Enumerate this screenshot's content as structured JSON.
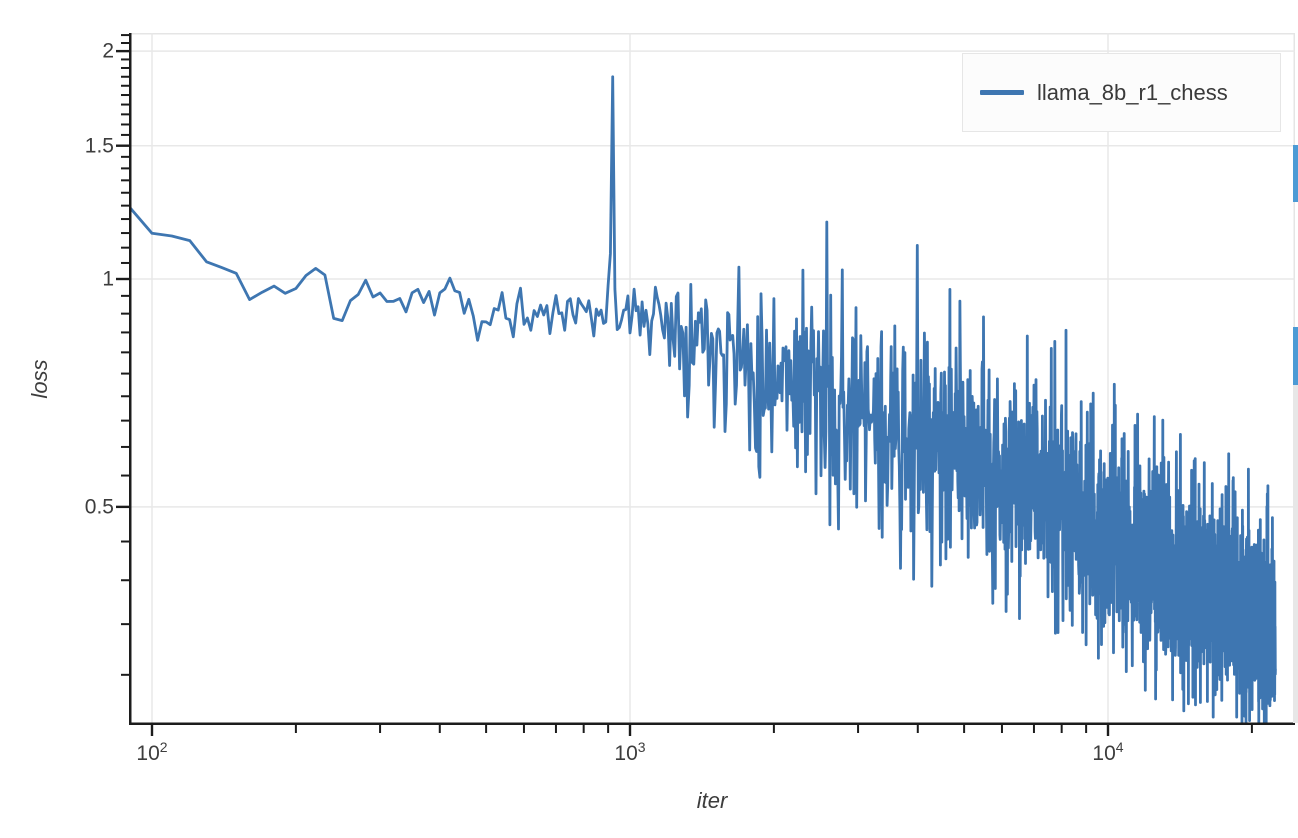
{
  "page": {
    "background": "#FFFFFF",
    "right_edge": {
      "strip_color": "#E7E7E7",
      "fragment_color": "#4C9BD5"
    }
  },
  "chart_data": {
    "type": "line",
    "title": "",
    "xlabel": "iter",
    "ylabel": "loss",
    "x_scale": "log",
    "y_scale": "log",
    "x_range": [
      89.3,
      24620
    ],
    "y_range": [
      0.258,
      2.11
    ],
    "grid": true,
    "x_ticks": [
      {
        "value": 100,
        "base": "10",
        "exp": "2"
      },
      {
        "value": 1000,
        "base": "10",
        "exp": "3"
      },
      {
        "value": 10000,
        "base": "10",
        "exp": "4"
      }
    ],
    "y_ticks": [
      {
        "value": 2,
        "label": "2"
      },
      {
        "value": 1.5,
        "label": "1.5"
      },
      {
        "value": 1,
        "label": "1"
      },
      {
        "value": 0.5,
        "label": "0.5"
      }
    ],
    "y_minor_tick_step": 0.05,
    "legend": {
      "position": "top-right",
      "entries": [
        {
          "label": "llama_8b_r1_chess",
          "color": "#3E76B1"
        }
      ]
    },
    "colors": {
      "line": "#3E76B1",
      "grid": "#E8E8E8",
      "frame": "#E5E5E5",
      "axis": "#1C1C1C",
      "text": "#3D3D3D"
    },
    "series": [
      {
        "name": "llama_8b_r1_chess",
        "color": "#3E76B1",
        "sampling": {
          "start_iter": 90,
          "end_iter": 22400,
          "step": 10,
          "noise_seed": 11
        },
        "trend_anchors": [
          [
            90,
            1.24
          ],
          [
            100,
            1.13
          ],
          [
            115,
            1.17
          ],
          [
            130,
            1.05
          ],
          [
            145,
            1.07
          ],
          [
            160,
            0.95
          ],
          [
            175,
            0.95
          ],
          [
            185,
            1.0
          ],
          [
            200,
            0.96
          ],
          [
            215,
            1.03
          ],
          [
            230,
            0.98
          ],
          [
            250,
            0.88
          ],
          [
            270,
            0.97
          ],
          [
            300,
            0.95
          ],
          [
            340,
            0.92
          ],
          [
            380,
            0.95
          ],
          [
            430,
            0.96
          ],
          [
            480,
            0.85
          ],
          [
            530,
            0.93
          ],
          [
            600,
            0.89
          ],
          [
            700,
            0.91
          ],
          [
            800,
            0.89
          ],
          [
            900,
            0.93
          ],
          [
            1000,
            0.87
          ],
          [
            1150,
            0.9
          ],
          [
            1300,
            0.86
          ],
          [
            1500,
            0.84
          ],
          [
            1750,
            0.79
          ],
          [
            2000,
            0.78
          ],
          [
            2400,
            0.72
          ],
          [
            2800,
            0.67
          ],
          [
            3200,
            0.64
          ],
          [
            3800,
            0.62
          ],
          [
            4500,
            0.62
          ],
          [
            5200,
            0.59
          ],
          [
            6000,
            0.56
          ],
          [
            7000,
            0.54
          ],
          [
            8000,
            0.51
          ],
          [
            9000,
            0.48
          ],
          [
            10000,
            0.46
          ],
          [
            11500,
            0.44
          ],
          [
            13000,
            0.42
          ],
          [
            15000,
            0.4
          ],
          [
            17000,
            0.385
          ],
          [
            19000,
            0.37
          ],
          [
            21000,
            0.355
          ],
          [
            22400,
            0.345
          ]
        ],
        "noise_amp_anchors": [
          [
            90,
            0.013
          ],
          [
            200,
            0.015
          ],
          [
            300,
            0.02
          ],
          [
            450,
            0.03
          ],
          [
            600,
            0.032
          ],
          [
            800,
            0.035
          ],
          [
            1000,
            0.042
          ],
          [
            1300,
            0.06
          ],
          [
            1600,
            0.075
          ],
          [
            2000,
            0.09
          ],
          [
            2500,
            0.1
          ],
          [
            3200,
            0.105
          ],
          [
            4000,
            0.11
          ],
          [
            6000,
            0.11
          ],
          [
            9000,
            0.105
          ],
          [
            13000,
            0.1
          ],
          [
            18000,
            0.095
          ],
          [
            22400,
            0.09
          ]
        ],
        "spike_overrides": [
          [
            910,
            1.08
          ],
          [
            920,
            1.85
          ],
          [
            930,
            0.97
          ]
        ]
      }
    ]
  }
}
